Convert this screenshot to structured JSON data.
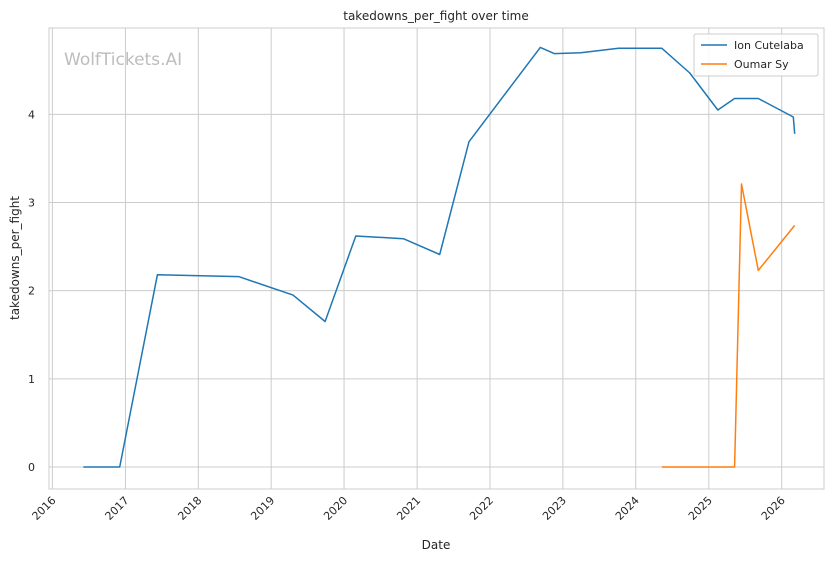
{
  "chart_data": {
    "type": "line",
    "title": "takedowns_per_fight over time",
    "xlabel": "Date",
    "ylabel": "takedowns_per_fight",
    "watermark": "WolfTickets.AI",
    "xlim": [
      "2015-12-15",
      "2026-08-01"
    ],
    "ylim": [
      -0.25,
      4.98
    ],
    "x_ticks": [
      "2016-01-01",
      "2017-01-01",
      "2018-01-01",
      "2019-01-01",
      "2020-01-01",
      "2021-01-01",
      "2022-01-01",
      "2023-01-01",
      "2024-01-01",
      "2025-01-01",
      "2026-01-01"
    ],
    "x_tick_labels": [
      "2016",
      "2017",
      "2018",
      "2019",
      "2020",
      "2021",
      "2022",
      "2023",
      "2024",
      "2025",
      "2026"
    ],
    "y_ticks": [
      0,
      1,
      2,
      3,
      4
    ],
    "y_tick_labels": [
      "0",
      "1",
      "2",
      "3",
      "4"
    ],
    "grid": true,
    "legend_position": "top-right",
    "series": [
      {
        "name": "Ion Cutelaba",
        "color": "#1f77b4",
        "points": [
          [
            "2016-06-04",
            0.0
          ],
          [
            "2016-12-03",
            0.0
          ],
          [
            "2017-06-10",
            2.18
          ],
          [
            "2018-07-22",
            2.16
          ],
          [
            "2019-04-20",
            1.95
          ],
          [
            "2019-09-28",
            1.65
          ],
          [
            "2020-02-29",
            2.62
          ],
          [
            "2020-10-24",
            2.59
          ],
          [
            "2021-04-24",
            2.41
          ],
          [
            "2021-09-18",
            3.69
          ],
          [
            "2022-09-10",
            4.76
          ],
          [
            "2022-11-19",
            4.69
          ],
          [
            "2023-04-01",
            4.7
          ],
          [
            "2023-10-07",
            4.75
          ],
          [
            "2024-05-11",
            4.75
          ],
          [
            "2024-09-28",
            4.47
          ],
          [
            "2025-02-15",
            4.05
          ],
          [
            "2025-05-10",
            4.18
          ],
          [
            "2025-09-06",
            4.18
          ],
          [
            "2026-02-28",
            3.97
          ],
          [
            "2026-03-07",
            3.78
          ]
        ]
      },
      {
        "name": "Oumar Sy",
        "color": "#ff7f0e",
        "points": [
          [
            "2024-05-11",
            0.0
          ],
          [
            "2025-05-10",
            0.0
          ],
          [
            "2025-06-14",
            3.21
          ],
          [
            "2025-09-06",
            2.23
          ],
          [
            "2026-03-07",
            2.74
          ]
        ]
      }
    ]
  }
}
